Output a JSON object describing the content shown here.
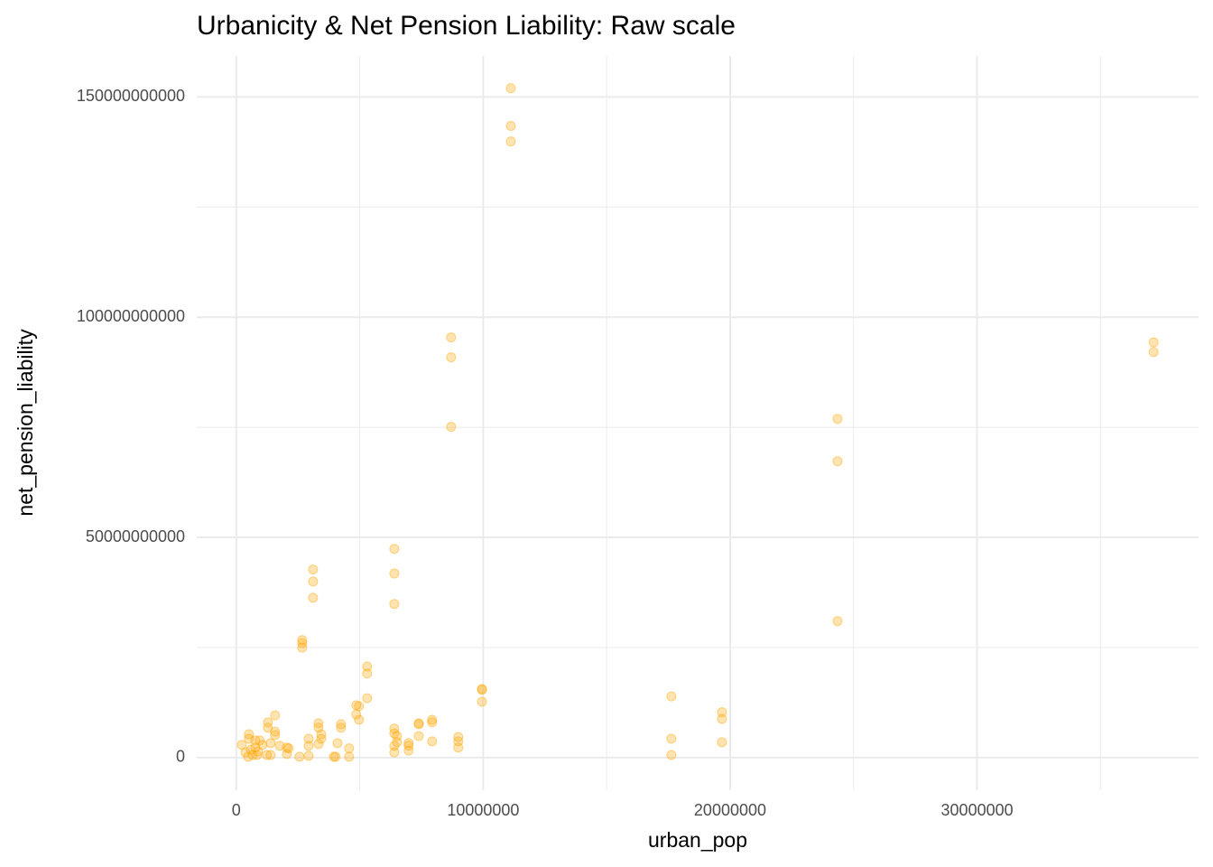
{
  "chart_data": {
    "type": "scatter",
    "title": "Urbanicity & Net Pension Liability: Raw scale",
    "x_label": "urban_pop",
    "y_label": "net_pension_liability",
    "color": "#FFA500",
    "alpha": 0.3,
    "grid": true,
    "xlim": [
      -1600000,
      38970000
    ],
    "ylim": [
      -7400000000,
      159300000000
    ],
    "xticks": [
      0,
      10000000,
      20000000,
      30000000
    ],
    "yticks": [
      0,
      50000000000,
      100000000000,
      150000000000
    ],
    "x": [
      11120000,
      11120000,
      11120000,
      8700000,
      8700000,
      8700000,
      37150000,
      37150000,
      24350000,
      24350000,
      24350000,
      6400000,
      6400000,
      6400000,
      3110000,
      3110000,
      3110000,
      2670000,
      2670000,
      2670000,
      5300000,
      5300000,
      5300000,
      9950000,
      9950000,
      9950000,
      17620000,
      17620000,
      17620000,
      19670000,
      19670000,
      19670000,
      7390000,
      7390000,
      7390000,
      7930000,
      7930000,
      7930000,
      8990000,
      8990000,
      8990000,
      6980000,
      6980000,
      6980000,
      6400000,
      6400000,
      6510000,
      6510000,
      6400000,
      6400000,
      4860000,
      4970000,
      4860000,
      4970000,
      4240000,
      4240000,
      4570000,
      4570000,
      4100000,
      4020000,
      3950000,
      3330000,
      3330000,
      3440000,
      3440000,
      3330000,
      2930000,
      2930000,
      2930000,
      2560000,
      2050000,
      2050000,
      1570000,
      1570000,
      1570000,
      1280000,
      1280000,
      1390000,
      1390000,
      1240000,
      950000,
      1060000,
      510000,
      510000,
      220000,
      370000,
      590000,
      770000,
      660000,
      840000,
      480000,
      1760000,
      2120000,
      770000,
      880000
    ],
    "y": [
      152000000000,
      143400000000,
      139900000000,
      95400000000,
      90900000000,
      75100000000,
      94300000000,
      92100000000,
      76900000000,
      67300000000,
      31000000000,
      47400000000,
      41800000000,
      34900000000,
      42700000000,
      40000000000,
      36300000000,
      26700000000,
      26000000000,
      25000000000,
      20700000000,
      19100000000,
      13500000000,
      15600000000,
      15400000000,
      12700000000,
      13900000000,
      4300000000,
      600000000,
      10300000000,
      8800000000,
      3500000000,
      7800000000,
      7600000000,
      4900000000,
      8600000000,
      8000000000,
      3700000000,
      4700000000,
      3700000000,
      2300000000,
      3300000000,
      2700000000,
      1600000000,
      6600000000,
      5500000000,
      4900000000,
      3500000000,
      2700000000,
      1200000000,
      11900000000,
      11700000000,
      9800000000,
      8600000000,
      7600000000,
      6800000000,
      2100000000,
      200000000,
      3300000000,
      200000000,
      200000000,
      7800000000,
      6800000000,
      5300000000,
      4300000000,
      3100000000,
      4300000000,
      2700000000,
      400000000,
      200000000,
      2300000000,
      800000000,
      9600000000,
      5900000000,
      5100000000,
      8000000000,
      6800000000,
      3300000000,
      600000000,
      600000000,
      3900000000,
      2900000000,
      5300000000,
      4300000000,
      2900000000,
      1200000000,
      1800000000,
      2300000000,
      600000000,
      600000000,
      200000000,
      2700000000,
      2100000000,
      3900000000,
      1400000000
    ]
  }
}
